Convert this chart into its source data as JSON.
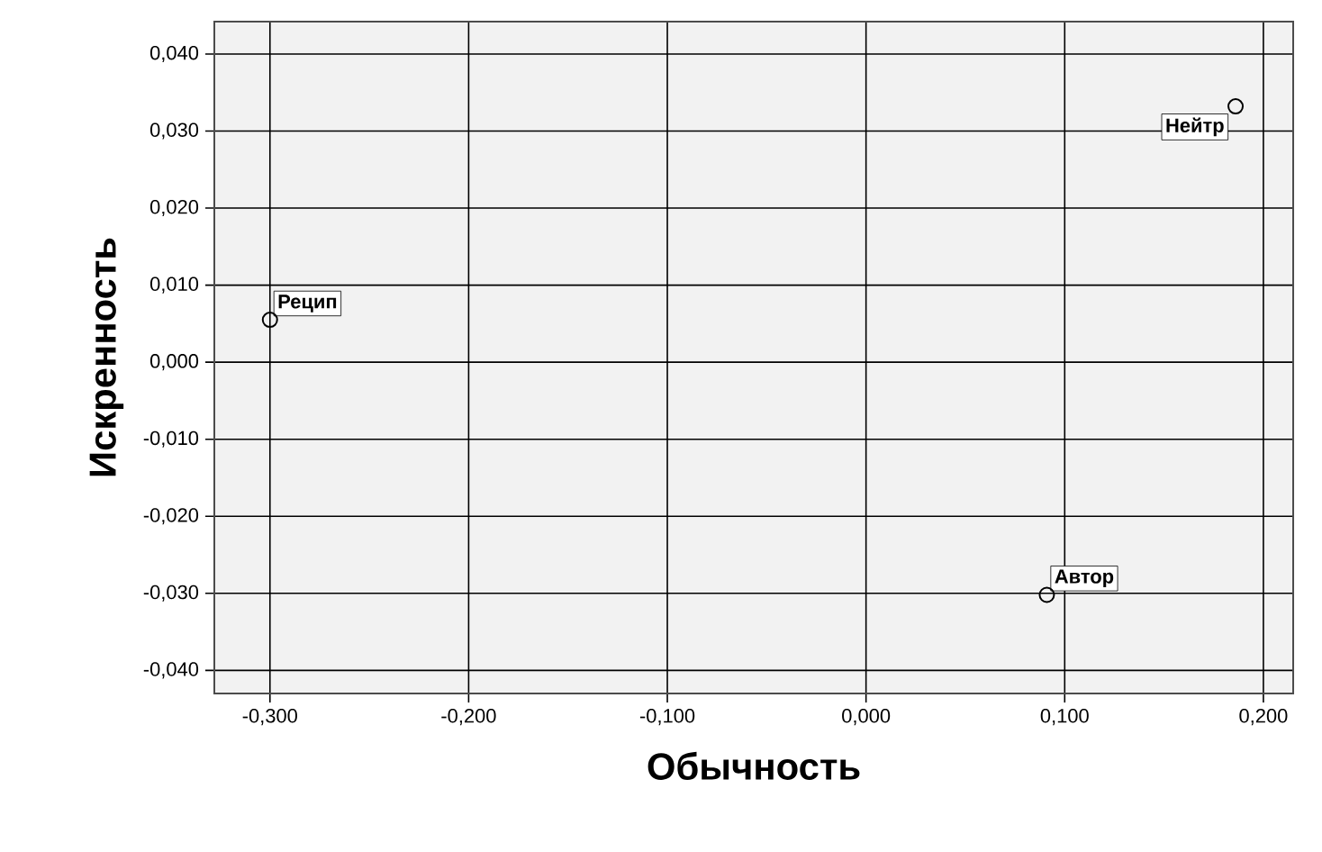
{
  "chart_data": {
    "type": "scatter",
    "xlabel": "Обычность",
    "ylabel": "Искренность",
    "x": [
      -0.3,
      0.186,
      0.091
    ],
    "values": [
      0.0055,
      0.0332,
      -0.0302
    ],
    "color": "#000000",
    "marker": "circle",
    "grid": true,
    "xlim": [
      -0.328,
      0.215
    ],
    "ylim": [
      -0.043,
      0.0442
    ],
    "xticks": [
      {
        "value": -0.3,
        "label": "-0,300"
      },
      {
        "value": -0.2,
        "label": "-0,200"
      },
      {
        "value": -0.1,
        "label": "-0,100"
      },
      {
        "value": 0.0,
        "label": "0,000"
      },
      {
        "value": 0.1,
        "label": "0,100"
      },
      {
        "value": 0.2,
        "label": "0,200"
      }
    ],
    "yticks": [
      {
        "value": -0.04,
        "label": "-0,040"
      },
      {
        "value": -0.03,
        "label": "-0,030"
      },
      {
        "value": -0.02,
        "label": "-0,020"
      },
      {
        "value": -0.01,
        "label": "-0,010"
      },
      {
        "value": 0.0,
        "label": "0,000"
      },
      {
        "value": 0.01,
        "label": "0,010"
      },
      {
        "value": 0.02,
        "label": "0,020"
      },
      {
        "value": 0.03,
        "label": "0,030"
      },
      {
        "value": 0.04,
        "label": "0,040"
      }
    ],
    "annotations": [
      {
        "text": "Рецип",
        "x": -0.3,
        "y": 0.0055
      },
      {
        "text": "Нейтр",
        "x": 0.186,
        "y": 0.0332
      },
      {
        "text": "Автор",
        "x": 0.091,
        "y": -0.0302
      }
    ]
  }
}
